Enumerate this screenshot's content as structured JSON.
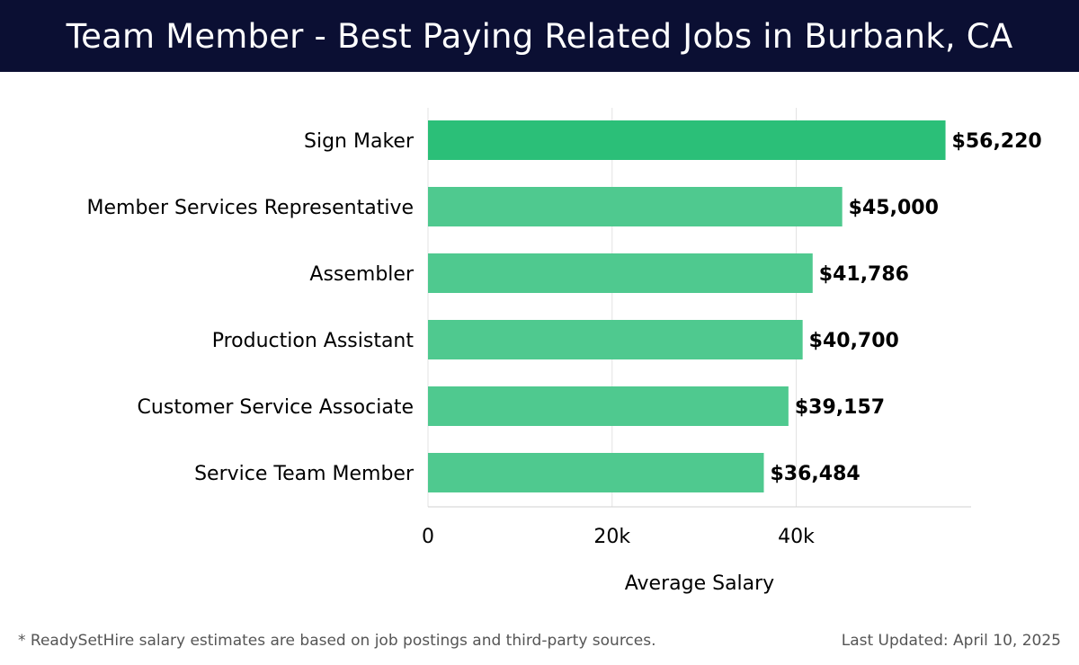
{
  "header": {
    "title": "Team Member - Best Paying Related Jobs in Burbank, CA"
  },
  "chart_data": {
    "type": "bar",
    "orientation": "horizontal",
    "categories": [
      "Sign Maker",
      "Member Services Representative",
      "Assembler",
      "Production Assistant",
      "Customer Service Associate",
      "Service Team Member"
    ],
    "values": [
      56220,
      45000,
      41786,
      40700,
      39157,
      36484
    ],
    "value_labels": [
      "$56,220",
      "$45,000",
      "$41,786",
      "$40,700",
      "$39,157",
      "$36,484"
    ],
    "xlabel": "Average Salary",
    "ylabel": "",
    "xlim": [
      0,
      59000
    ],
    "xticks": [
      0,
      20000,
      40000
    ],
    "xtick_labels": [
      "0",
      "20k",
      "40k"
    ],
    "grid": "vertical",
    "colors": {
      "top_bar": "#2bbf78",
      "bars": "#4fc98f"
    }
  },
  "footer": {
    "note": "* ReadySetHire salary estimates are based on job postings and third-party sources.",
    "updated": "Last Updated: April 10, 2025"
  }
}
